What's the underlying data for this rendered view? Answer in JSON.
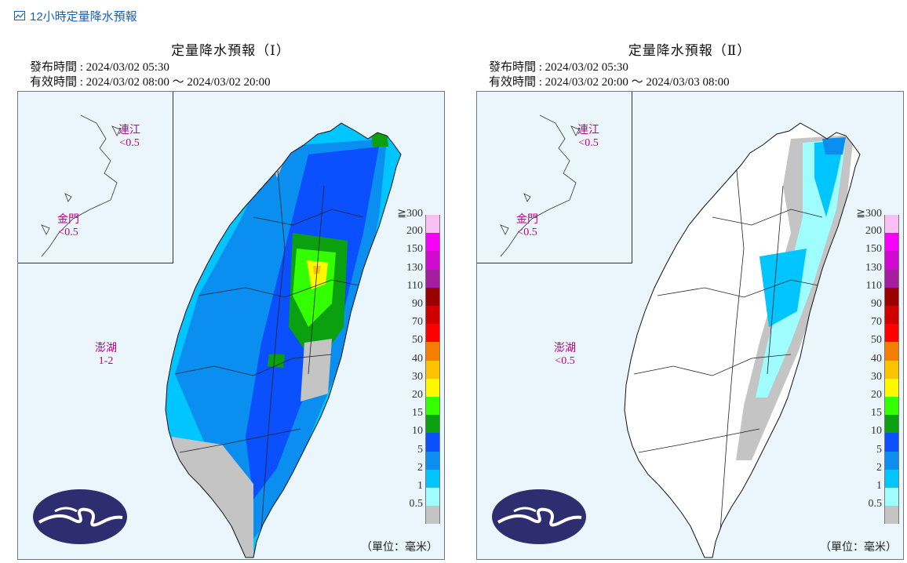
{
  "header": {
    "title": "12小時定量降水預報"
  },
  "legend": {
    "labels": [
      "≧300",
      "200",
      "150",
      "130",
      "110",
      "90",
      "70",
      "50",
      "40",
      "30",
      "20",
      "15",
      "10",
      "5",
      "2",
      "1",
      "0.5"
    ],
    "colors": [
      "#fac0f4",
      "#f700f7",
      "#d10ad1",
      "#a51e9f",
      "#9b0000",
      "#d00000",
      "#ff0000",
      "#f57e00",
      "#fbc200",
      "#fff900",
      "#33ff00",
      "#0aa010",
      "#0a50ff",
      "#0a8ef0",
      "#01c5ff",
      "#9ffdff",
      "#c4c4c4"
    ],
    "unit": "（單位：毫米）"
  },
  "panels": [
    {
      "title": "定量降水預報（Ⅰ）",
      "issued": "發布時間 : 2024/03/02 05:30",
      "valid": "有效時間 : 2024/03/02 08:00 ～ 2024/03/02 20:00",
      "labels": {
        "lienchiang_name": "連江",
        "lienchiang_value": "<0.5",
        "kinmen_name": "金門",
        "kinmen_value": "<0.5",
        "penghu_name": "澎湖",
        "penghu_value": "1-2"
      }
    },
    {
      "title": "定量降水預報（Ⅱ）",
      "issued": "發布時間 : 2024/03/02 05:30",
      "valid": "有效時間 : 2024/03/02 20:00 ～ 2024/03/03 08:00",
      "labels": {
        "lienchiang_name": "連江",
        "lienchiang_value": "<0.5",
        "kinmen_name": "金門",
        "kinmen_value": "<0.5",
        "penghu_name": "澎湖",
        "penghu_value": "<0.5"
      }
    }
  ]
}
